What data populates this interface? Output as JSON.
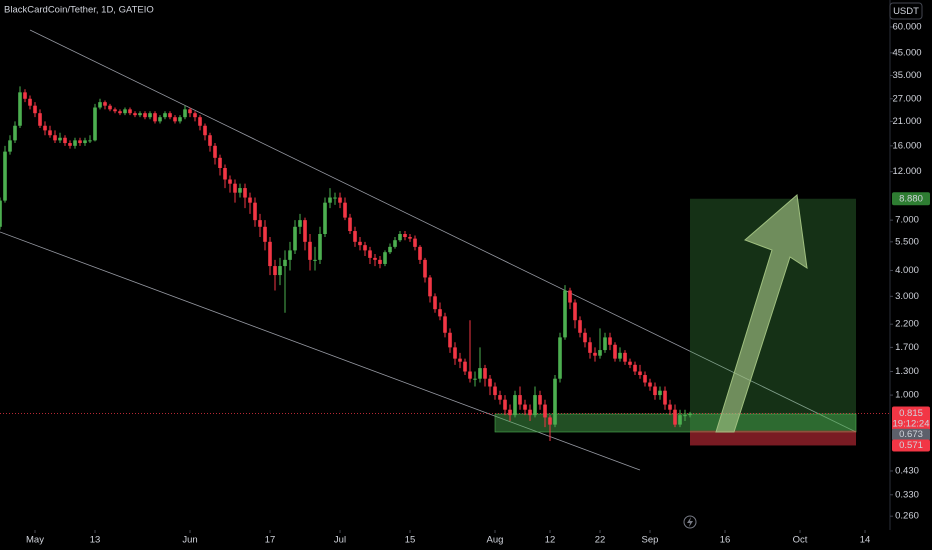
{
  "chart_data": {
    "type": "candlestick",
    "title": "BlackCardCoin/Tether, 1D, GATEIO",
    "currency": "USDT",
    "log_scale": true,
    "up_color": "#4caf50",
    "down_color": "#f23645",
    "open": [
      6.5,
      8.7,
      15,
      17,
      20,
      29,
      27,
      25,
      23,
      20,
      19,
      18,
      17,
      17.5,
      16.5,
      16,
      17,
      16.5,
      17,
      17,
      24.5,
      26,
      25,
      24,
      23.5,
      23,
      24,
      23,
      22.5,
      23,
      22,
      23,
      21,
      22,
      23,
      22,
      21,
      22,
      24,
      23,
      22,
      20,
      18,
      16,
      14,
      12.5,
      11,
      10.5,
      9.5,
      10,
      9,
      8.5,
      7,
      6.5,
      5.5,
      4.2,
      3.8,
      4.2,
      4.5,
      5,
      6.5,
      7,
      5.5,
      4.5,
      4.5,
      6,
      8.5,
      9,
      9,
      8.5,
      7.2,
      6.2,
      5.5,
      5.3,
      5,
      4.6,
      4.5,
      4.3,
      4.9,
      5.2,
      5.6,
      6,
      5.8,
      5.7,
      5.2,
      4.5,
      3.7,
      3,
      2.6,
      2.4,
      2,
      1.7,
      1.5,
      1.45,
      1.3,
      1.2,
      1.2,
      1.35,
      1.2,
      1.1,
      1,
      0.95,
      0.85,
      0.8,
      1,
      0.9,
      0.85,
      0.8,
      1,
      0.9,
      0.78,
      0.72,
      1.2,
      1.9,
      3.2,
      2.8,
      2.3,
      2,
      1.8,
      1.6,
      1.55,
      1.65,
      1.9,
      1.75,
      1.5,
      1.6,
      1.45,
      1.4,
      1.3,
      1.25,
      1.15,
      1.1,
      1,
      1.05,
      0.9,
      0.85,
      0.72,
      0.8,
      0.8
    ],
    "high": [
      9,
      16,
      18,
      21,
      31,
      30,
      28,
      26,
      24,
      21,
      20,
      19,
      18.5,
      18,
      17,
      17.5,
      17.5,
      17.5,
      18,
      25.5,
      27,
      26.5,
      25.5,
      24.5,
      24,
      24.5,
      24.5,
      23.5,
      23.5,
      23.5,
      23.5,
      23.5,
      22.5,
      23.5,
      23.5,
      22.5,
      22.5,
      25,
      24.5,
      23.5,
      22.5,
      20.5,
      18.5,
      16.5,
      14.5,
      13,
      11.5,
      11,
      10.5,
      10.5,
      9.5,
      9,
      7.5,
      7,
      5.8,
      4.5,
      4.6,
      5,
      5.5,
      7,
      7.5,
      7.2,
      6,
      5.2,
      6.5,
      9,
      10,
      9.5,
      9.5,
      9,
      7.5,
      6.5,
      5.8,
      5.5,
      5.2,
      4.8,
      4.7,
      5,
      5.4,
      5.8,
      6.2,
      6.2,
      6,
      5.9,
      5.3,
      4.6,
      3.8,
      3.1,
      2.8,
      2.5,
      2.1,
      1.8,
      1.6,
      1.5,
      2.3,
      1.3,
      1.7,
      1.4,
      1.25,
      1.15,
      1.05,
      1,
      0.9,
      1.05,
      1.1,
      0.95,
      0.9,
      1.1,
      1.05,
      0.95,
      0.8,
      1.25,
      2,
      3.4,
      3.3,
      2.9,
      2.4,
      2.1,
      1.9,
      1.7,
      2.1,
      2,
      2,
      1.8,
      1.7,
      1.65,
      1.5,
      1.45,
      1.4,
      1.3,
      1.2,
      1.15,
      1.1,
      1.1,
      0.95,
      0.9,
      0.85,
      0.85,
      0.83
    ],
    "low": [
      6.3,
      8.5,
      14.5,
      16.5,
      19.5,
      26,
      24,
      22,
      19.5,
      18,
      17.5,
      16.5,
      16.5,
      16,
      15.5,
      15.5,
      16,
      16,
      16.5,
      16.8,
      24,
      24,
      23.5,
      23,
      22.5,
      22.5,
      22.5,
      22,
      22,
      21.5,
      21.5,
      20.5,
      20.5,
      21.5,
      21.5,
      20.5,
      20.5,
      21.5,
      22,
      21,
      19,
      17,
      15,
      13,
      11.5,
      10,
      9.5,
      8.5,
      9,
      8,
      7.5,
      6.5,
      5.8,
      5,
      3.8,
      3.2,
      3.4,
      2.5,
      4,
      4.8,
      6,
      5,
      4,
      4,
      4.3,
      5.8,
      8,
      8.3,
      8,
      7,
      6,
      5.2,
      5,
      4.7,
      4.3,
      4.2,
      4.1,
      4.2,
      4.8,
      5.1,
      5.5,
      5.6,
      5.5,
      5,
      4.3,
      3.5,
      2.8,
      2.5,
      2.3,
      1.9,
      1.6,
      1.4,
      1.35,
      1.25,
      1.15,
      1.1,
      1.15,
      1.1,
      1,
      0.95,
      0.9,
      0.8,
      0.75,
      0.78,
      0.85,
      0.8,
      0.75,
      0.78,
      0.85,
      0.7,
      0.6,
      0.7,
      1.15,
      1.85,
      2.6,
      2.1,
      1.9,
      1.7,
      1.5,
      1.45,
      1.5,
      1.6,
      1.65,
      1.45,
      1.45,
      1.4,
      1.35,
      1.25,
      1.2,
      1.1,
      1.05,
      0.95,
      0.95,
      0.85,
      0.8,
      0.7,
      0.7,
      0.75,
      0.78
    ],
    "close": [
      8.7,
      15,
      17,
      20,
      29,
      27,
      25,
      23,
      20,
      19,
      18,
      17,
      17.5,
      16.5,
      16,
      17,
      16.5,
      17,
      17,
      24.5,
      26,
      25,
      24,
      23.5,
      23,
      24,
      23,
      22.5,
      23,
      22,
      23,
      21,
      22,
      23,
      22,
      21,
      22,
      24,
      23,
      22,
      20,
      18,
      16,
      14,
      12.5,
      11,
      10.5,
      9.5,
      10,
      9,
      8.5,
      7,
      6.5,
      5.5,
      4.2,
      3.8,
      4.2,
      4.5,
      5,
      6.5,
      7,
      5.5,
      4.5,
      4.5,
      6,
      8.5,
      9,
      9,
      8.5,
      7.2,
      6.2,
      5.5,
      5.3,
      5,
      4.6,
      4.5,
      4.3,
      4.9,
      5.2,
      5.6,
      6,
      5.8,
      5.7,
      5.2,
      4.5,
      3.7,
      3,
      2.6,
      2.4,
      2,
      1.7,
      1.5,
      1.45,
      1.3,
      1.2,
      1.2,
      1.35,
      1.2,
      1.1,
      1,
      0.95,
      0.85,
      0.8,
      1,
      0.9,
      0.85,
      0.8,
      1,
      0.9,
      0.78,
      0.72,
      1.2,
      1.9,
      3.2,
      2.8,
      2.3,
      2,
      1.8,
      1.6,
      1.55,
      1.65,
      1.9,
      1.75,
      1.5,
      1.6,
      1.45,
      1.4,
      1.3,
      1.25,
      1.15,
      1.1,
      1,
      1.05,
      0.9,
      0.85,
      0.72,
      0.8,
      0.8,
      0.815
    ],
    "xlim": [
      0,
      178
    ],
    "xticks": [
      {
        "value": 7,
        "label": "May"
      },
      {
        "value": 19,
        "label": "13"
      },
      {
        "value": 38,
        "label": "Jun"
      },
      {
        "value": 54,
        "label": "17"
      },
      {
        "value": 68,
        "label": "Jul"
      },
      {
        "value": 82,
        "label": "15"
      },
      {
        "value": 99,
        "label": "Aug"
      },
      {
        "value": 110,
        "label": "12"
      },
      {
        "value": 120,
        "label": "22"
      },
      {
        "value": 130,
        "label": "Sep"
      },
      {
        "value": 145,
        "label": "16"
      },
      {
        "value": 160,
        "label": "Oct"
      },
      {
        "value": 173,
        "label": "14"
      }
    ],
    "ylim": [
      0.223,
      81
    ],
    "yticks": [
      {
        "value": 60,
        "label": "60.000"
      },
      {
        "value": 45,
        "label": "45.000"
      },
      {
        "value": 35,
        "label": "35.000"
      },
      {
        "value": 27,
        "label": "27.000"
      },
      {
        "value": 21,
        "label": "21.000"
      },
      {
        "value": 16,
        "label": "16.000"
      },
      {
        "value": 12,
        "label": "12.000"
      },
      {
        "value": 7,
        "label": "7.000"
      },
      {
        "value": 5.5,
        "label": "5.500"
      },
      {
        "value": 4,
        "label": "4.000"
      },
      {
        "value": 3,
        "label": "3.000"
      },
      {
        "value": 2.2,
        "label": "2.200"
      },
      {
        "value": 1.7,
        "label": "1.700"
      },
      {
        "value": 1.3,
        "label": "1.300"
      },
      {
        "value": 1,
        "label": "1.000"
      },
      {
        "value": 0.43,
        "label": "0.430"
      },
      {
        "value": 0.33,
        "label": "0.330"
      },
      {
        "value": 0.26,
        "label": "0.260"
      }
    ],
    "last_price": 0.815,
    "countdown": "19:12:24",
    "target": {
      "value": 8.88,
      "label": "8.880"
    },
    "entry": 0.673,
    "stop": 0.571
  }
}
